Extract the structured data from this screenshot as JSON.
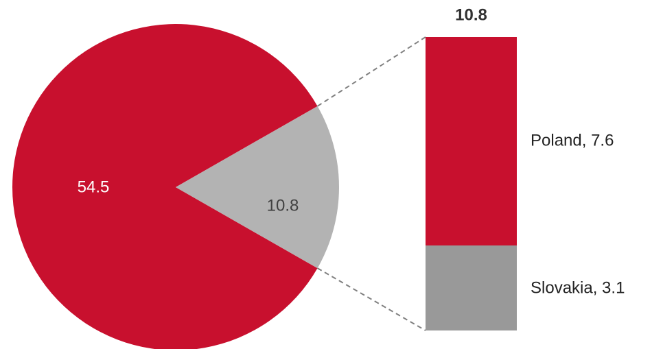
{
  "chart_data": {
    "type": "pie",
    "subtype": "bar-of-pie",
    "pie": {
      "slices": [
        {
          "label": "54.5",
          "value": 54.5,
          "color": "#C8102E"
        },
        {
          "label": "10.8",
          "value": 10.8,
          "color": "#B3B3B3"
        }
      ]
    },
    "bar": {
      "title": "10.8",
      "total": 10.8,
      "segments": [
        {
          "label": "Poland, 7.6",
          "name": "Poland",
          "value": 7.6,
          "color": "#C8102E"
        },
        {
          "label": "Slovakia, 3.1",
          "name": "Slovakia",
          "value": 3.1,
          "color": "#999999"
        }
      ]
    },
    "connector_color": "#808080",
    "legend": "none"
  }
}
